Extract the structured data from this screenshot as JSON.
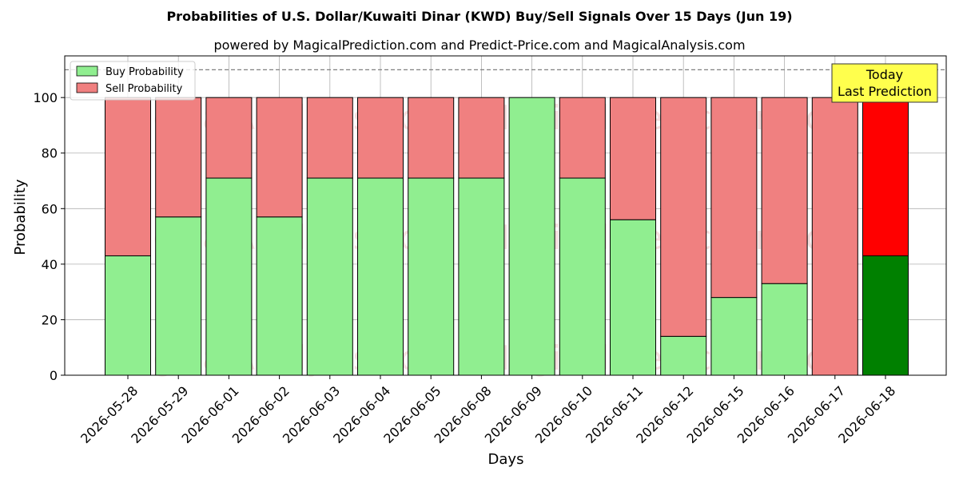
{
  "chart_data": {
    "type": "bar",
    "stacked": true,
    "title": "Probabilities of U.S. Dollar/Kuwaiti Dinar (KWD) Buy/Sell Signals Over 15 Days (Jun 19)",
    "subtitle": "powered by MagicalPrediction.com and Predict-Price.com and MagicalAnalysis.com",
    "xlabel": "Days",
    "ylabel": "Probability",
    "ylim": [
      0,
      115
    ],
    "yticks": [
      0,
      20,
      40,
      60,
      80,
      100
    ],
    "grid": true,
    "legend_position": "top-left",
    "categories": [
      "2026-05-28",
      "2026-05-29",
      "2026-06-01",
      "2026-06-02",
      "2026-06-03",
      "2026-06-04",
      "2026-06-05",
      "2026-06-08",
      "2026-06-09",
      "2026-06-10",
      "2026-06-11",
      "2026-06-12",
      "2026-06-15",
      "2026-06-16",
      "2026-06-17",
      "2026-06-18"
    ],
    "series": [
      {
        "name": "Buy Probability",
        "color": "#90ee90",
        "highlight_color": "#008000",
        "values": [
          43,
          57,
          71,
          57,
          71,
          71,
          71,
          71,
          100,
          71,
          56,
          14,
          28,
          33,
          0,
          43
        ]
      },
      {
        "name": "Sell Probability",
        "color": "#f08080",
        "highlight_color": "#ff0000",
        "values": [
          57,
          43,
          29,
          43,
          29,
          29,
          29,
          29,
          0,
          29,
          44,
          86,
          72,
          67,
          100,
          57
        ]
      }
    ],
    "highlight_index": 15,
    "reference_line": {
      "y": 110,
      "style": "dashed",
      "color": "#808080"
    },
    "annotation": {
      "lines": [
        "Today",
        "Last Prediction"
      ],
      "background": "#ffff4d"
    },
    "watermarks": [
      "MagicalAnalysis.com",
      "MagicalPrediction.com"
    ]
  }
}
